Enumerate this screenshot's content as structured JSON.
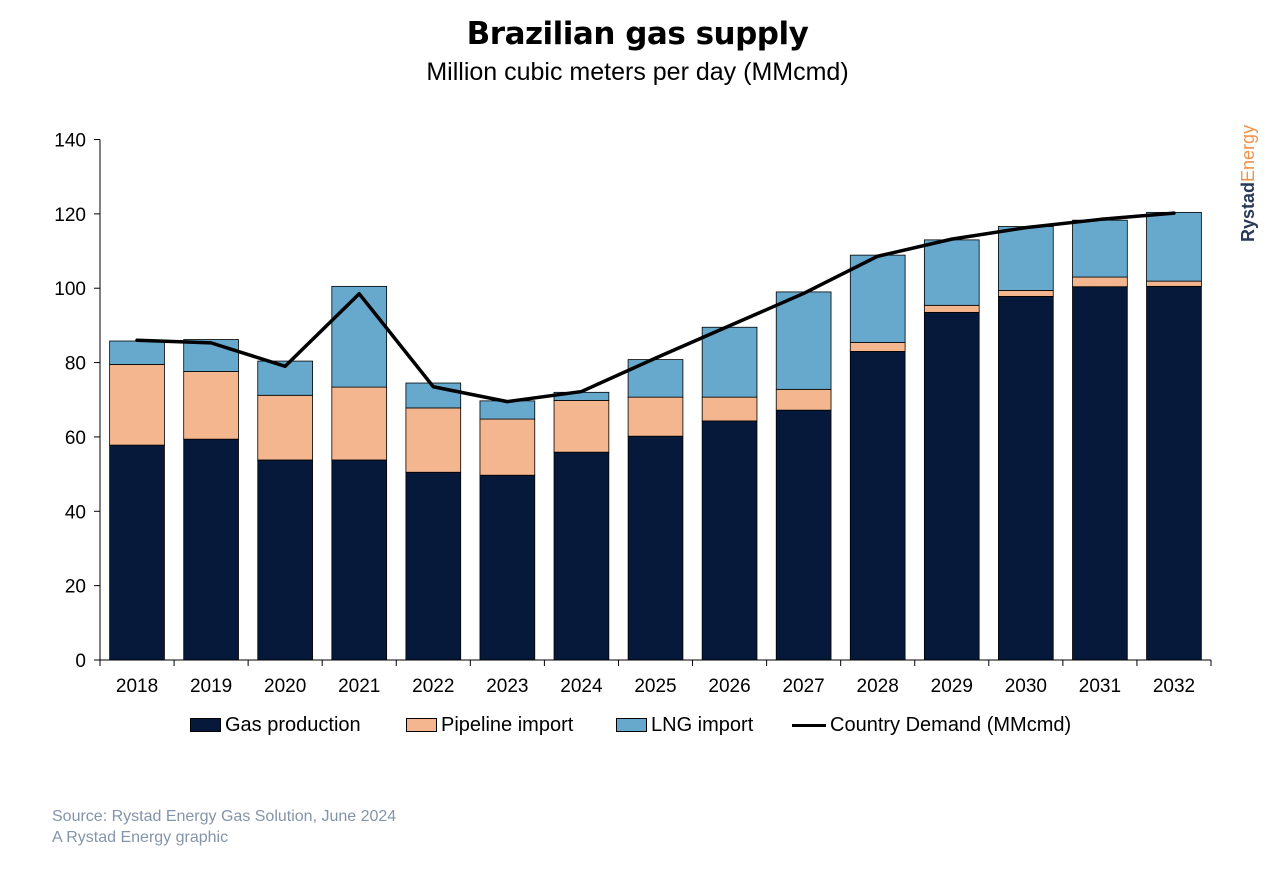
{
  "title": "Brazilian gas supply",
  "subtitle": "Million cubic meters per day (MMcmd)",
  "brand": {
    "part1": "Rystad",
    "part2": "Energy",
    "color1": "#293a59",
    "color2": "#f0924a"
  },
  "source_line1": "Source: Rystad Energy Gas Solution, June 2024",
  "source_line2": "A Rystad Energy graphic",
  "chart_data": {
    "type": "bar",
    "stacked": true,
    "categories": [
      "2018",
      "2019",
      "2020",
      "2021",
      "2022",
      "2023",
      "2024",
      "2025",
      "2026",
      "2027",
      "2028",
      "2029",
      "2030",
      "2031",
      "2032"
    ],
    "series": [
      {
        "name": "Gas production",
        "color": "#06193a",
        "values": [
          57.8,
          59.4,
          53.8,
          53.8,
          50.5,
          49.7,
          55.9,
          60.2,
          64.3,
          67.2,
          83.0,
          93.5,
          97.8,
          100.4,
          100.5
        ]
      },
      {
        "name": "Pipeline import",
        "color": "#f4b68e",
        "values": [
          21.7,
          18.2,
          17.4,
          19.6,
          17.3,
          15.1,
          13.9,
          10.5,
          6.4,
          5.6,
          2.4,
          1.9,
          1.6,
          2.6,
          1.4
        ]
      },
      {
        "name": "LNG import",
        "color": "#67a9cc",
        "values": [
          6.3,
          8.6,
          9.2,
          27.1,
          6.7,
          4.9,
          2.2,
          10.1,
          18.8,
          26.2,
          23.5,
          17.6,
          17.2,
          15.3,
          18.5
        ]
      }
    ],
    "line": {
      "name": "Country Demand (MMcmd)",
      "color": "#000000",
      "values": [
        86.0,
        85.3,
        79.0,
        98.5,
        73.5,
        69.5,
        72.2,
        81.2,
        89.9,
        98.6,
        108.6,
        113.2,
        116.3,
        118.5,
        120.2
      ]
    },
    "ylim": [
      0,
      140
    ],
    "yticks": [
      0,
      20,
      40,
      60,
      80,
      100,
      120,
      140
    ],
    "grid": false,
    "legend": "bottom"
  }
}
